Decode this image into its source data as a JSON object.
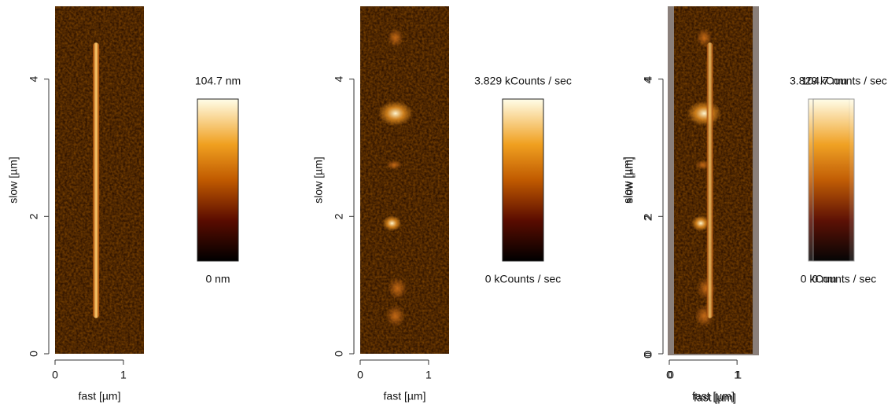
{
  "chart_data": [
    {
      "type": "image",
      "xlabel": "fast [µm]",
      "ylabel": "slow [µm]",
      "xlim": [
        0,
        1.3
      ],
      "xticks": [
        0,
        1
      ],
      "ylim": [
        0,
        5.06
      ],
      "yticks": [
        0,
        2,
        4
      ],
      "zticks": [
        {
          "value": 0,
          "label": "0 nm"
        },
        {
          "value": 104.7,
          "label": "104.7 nm"
        }
      ]
    },
    {
      "type": "image",
      "xlabel": "fast [µm]",
      "ylabel": "slow [µm]",
      "xlim": [
        0,
        1.3
      ],
      "xticks": [
        0,
        1
      ],
      "ylim": [
        0,
        5.06
      ],
      "yticks": [
        0,
        2,
        4
      ],
      "zticks": [
        {
          "value": 0,
          "label": "0 kCounts / sec"
        },
        {
          "value": 3.829,
          "label": "3.829 kCounts / sec"
        }
      ]
    },
    {
      "type": "overlay",
      "xlabel": "fast [µm]",
      "ylabel": "slow [µm]",
      "xlim": [
        0,
        1.3
      ],
      "xticks": [
        0,
        1
      ],
      "ylim": [
        0,
        5.06
      ],
      "yticks": [
        0,
        2,
        4
      ],
      "layers": [
        {
          "zticks": [
            {
              "value": 0,
              "label": "0 nm"
            },
            {
              "value": 104.7,
              "label": "104.7 nm"
            }
          ]
        },
        {
          "zticks": [
            {
              "value": 0,
              "label": "0 kCounts / sec"
            },
            {
              "value": 3.829,
              "label": "3.829 kCounts / sec"
            }
          ]
        }
      ]
    }
  ]
}
